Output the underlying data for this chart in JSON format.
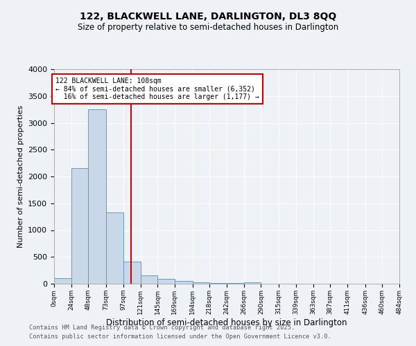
{
  "title1": "122, BLACKWELL LANE, DARLINGTON, DL3 8QQ",
  "title2": "Size of property relative to semi-detached houses in Darlington",
  "xlabel": "Distribution of semi-detached houses by size in Darlington",
  "ylabel": "Number of semi-detached properties",
  "footnote1": "Contains HM Land Registry data © Crown copyright and database right 2025.",
  "footnote2": "Contains public sector information licensed under the Open Government Licence v3.0.",
  "property_size": 108,
  "property_label": "122 BLACKWELL LANE: 108sqm",
  "pct_smaller": 84,
  "count_smaller": "6,352",
  "pct_larger": 16,
  "count_larger": "1,177",
  "bin_edges": [
    0,
    24,
    48,
    73,
    97,
    121,
    145,
    169,
    194,
    218,
    242,
    266,
    290,
    315,
    339,
    363,
    387,
    411,
    436,
    460,
    484
  ],
  "bin_counts": [
    100,
    2150,
    3250,
    1330,
    410,
    160,
    90,
    50,
    30,
    10,
    10,
    30,
    5,
    5,
    5,
    5,
    5,
    5,
    5,
    5
  ],
  "bar_color": "#c8d8e8",
  "bar_edge_color": "#6699bb",
  "red_line_color": "#cc0000",
  "annotation_box_color": "#cc0000",
  "background_color": "#eef2f7",
  "ylim": [
    0,
    4000
  ],
  "yticks": [
    0,
    500,
    1000,
    1500,
    2000,
    2500,
    3000,
    3500,
    4000
  ]
}
